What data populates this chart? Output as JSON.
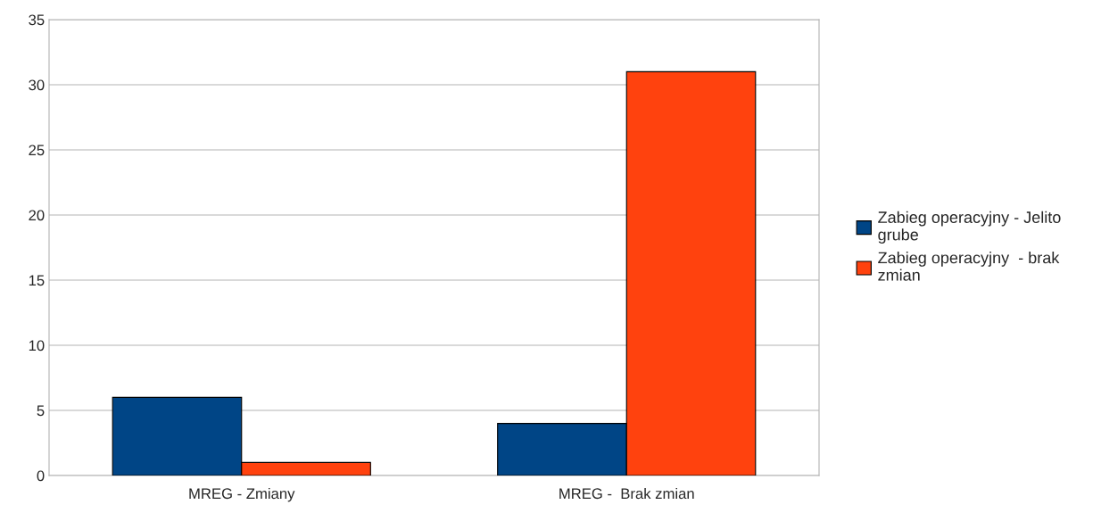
{
  "chart_data": {
    "type": "bar",
    "categories": [
      "MREG - Zmiany",
      "MREG -  Brak zmian"
    ],
    "series": [
      {
        "name": "Zabieg operacyjny - Jelito grube",
        "color": "#004586",
        "values": [
          6,
          4
        ]
      },
      {
        "name": "Zabieg operacyjny  - brak zmian",
        "color": "#ff420e",
        "values": [
          1,
          31
        ]
      }
    ],
    "ylim": [
      0,
      35
    ],
    "yticks": [
      0,
      5,
      10,
      15,
      20,
      25,
      30,
      35
    ],
    "grid": "y",
    "legend": "right"
  }
}
